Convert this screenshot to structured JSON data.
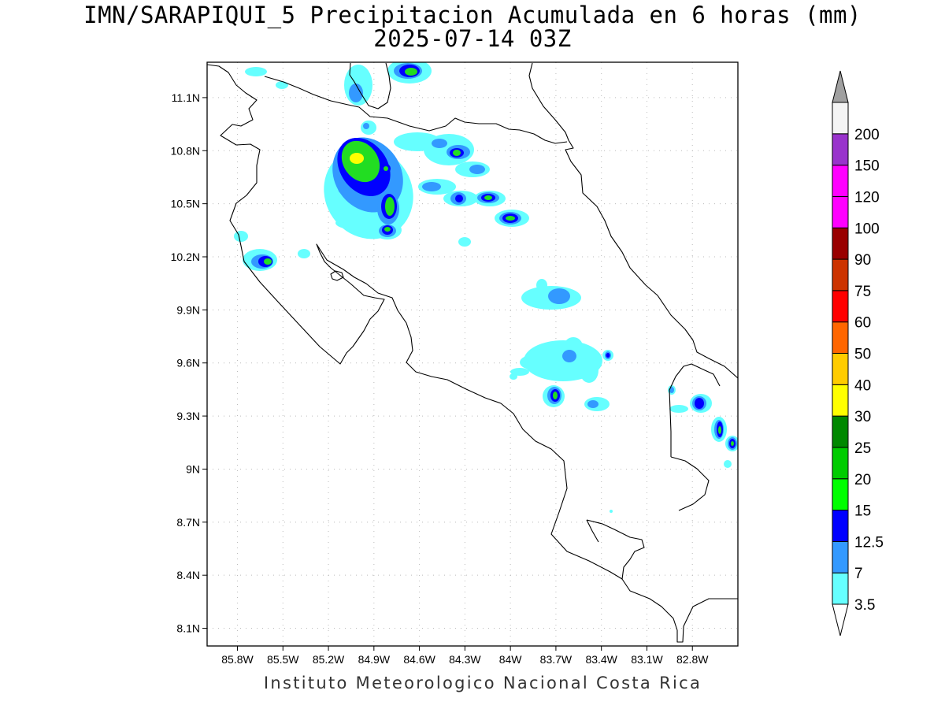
{
  "title": {
    "line1": "IMN/SARAPIQUI_5 Precipitacion Acumulada en 6 horas (mm)",
    "line2": "2025-07-14 03Z"
  },
  "footer": "Instituto Meteorologico Nacional Costa Rica",
  "map": {
    "region": "Costa Rica",
    "x_range": [
      -86.0,
      -82.5
    ],
    "y_range": [
      8.0,
      11.3
    ],
    "grid": true,
    "lon_ticks": [
      {
        "value": -85.8,
        "label": "85.8W"
      },
      {
        "value": -85.5,
        "label": "85.5W"
      },
      {
        "value": -85.2,
        "label": "85.2W"
      },
      {
        "value": -84.9,
        "label": "84.9W"
      },
      {
        "value": -84.6,
        "label": "84.6W"
      },
      {
        "value": -84.3,
        "label": "84.3W"
      },
      {
        "value": -84.0,
        "label": "84W"
      },
      {
        "value": -83.7,
        "label": "83.7W"
      },
      {
        "value": -83.4,
        "label": "83.4W"
      },
      {
        "value": -83.1,
        "label": "83.1W"
      },
      {
        "value": -82.8,
        "label": "82.8W"
      }
    ],
    "lat_ticks": [
      {
        "value": 11.1,
        "label": "11.1N"
      },
      {
        "value": 10.8,
        "label": "10.8N"
      },
      {
        "value": 10.5,
        "label": "10.5N"
      },
      {
        "value": 10.2,
        "label": "10.2N"
      },
      {
        "value": 9.9,
        "label": "9.9N"
      },
      {
        "value": 9.6,
        "label": "9.6N"
      },
      {
        "value": 9.3,
        "label": "9.3N"
      },
      {
        "value": 9.0,
        "label": "9N"
      },
      {
        "value": 8.7,
        "label": "8.7N"
      },
      {
        "value": 8.4,
        "label": "8.4N"
      },
      {
        "value": 8.1,
        "label": "8.1N"
      }
    ]
  },
  "colorbar": {
    "bins": [
      {
        "label": "3.5",
        "color": "#66ffff"
      },
      {
        "label": "7",
        "color": "#3399ff"
      },
      {
        "label": "12.5",
        "color": "#0000ff"
      },
      {
        "label": "15",
        "color": "#00ff00"
      },
      {
        "label": "20",
        "color": "#00cc00"
      },
      {
        "label": "25",
        "color": "#008800"
      },
      {
        "label": "30",
        "color": "#ffff00"
      },
      {
        "label": "40",
        "color": "#ffcc00"
      },
      {
        "label": "50",
        "color": "#ff6600"
      },
      {
        "label": "60",
        "color": "#ff0000"
      },
      {
        "label": "75",
        "color": "#cc3300"
      },
      {
        "label": "90",
        "color": "#990000"
      },
      {
        "label": "100",
        "color": "#ff00ff"
      },
      {
        "label": "120",
        "color": "#ff00ff"
      },
      {
        "label": "150",
        "color": "#9933cc"
      },
      {
        "label": "200",
        "color": "#f4f4f4"
      }
    ],
    "under_color": "#ffffff",
    "over_color": "#a0a0a0"
  },
  "precip_cells": [
    {
      "lon": -84.95,
      "lat": 10.8,
      "max_mm": 35
    },
    {
      "lon": -84.7,
      "lat": 10.52,
      "max_mm": 22
    },
    {
      "lon": -84.75,
      "lat": 11.24,
      "max_mm": 22
    },
    {
      "lon": -84.3,
      "lat": 10.8,
      "max_mm": 22
    },
    {
      "lon": -84.0,
      "lat": 10.42,
      "max_mm": 22
    },
    {
      "lon": -84.15,
      "lat": 10.53,
      "max_mm": 16
    },
    {
      "lon": -84.33,
      "lat": 10.53,
      "max_mm": 14
    },
    {
      "lon": -84.88,
      "lat": 10.36,
      "max_mm": 16
    },
    {
      "lon": -85.6,
      "lat": 10.17,
      "max_mm": 22
    },
    {
      "lon": -83.7,
      "lat": 9.97,
      "max_mm": 9
    },
    {
      "lon": -83.72,
      "lat": 9.64,
      "max_mm": 9
    },
    {
      "lon": -83.7,
      "lat": 9.42,
      "max_mm": 22
    },
    {
      "lon": -83.38,
      "lat": 9.65,
      "max_mm": 14
    },
    {
      "lon": -82.72,
      "lat": 9.38,
      "max_mm": 14
    },
    {
      "lon": -82.62,
      "lat": 9.23,
      "max_mm": 18
    },
    {
      "lon": -82.53,
      "lat": 9.14,
      "max_mm": 20
    }
  ]
}
